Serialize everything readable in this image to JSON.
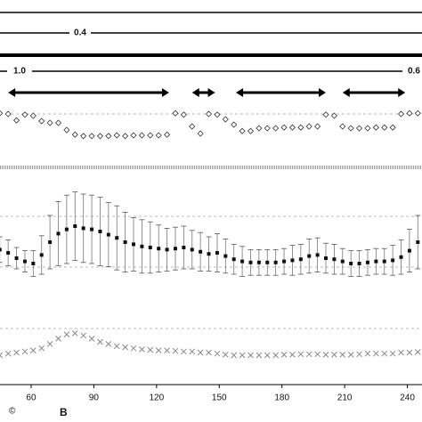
{
  "chart_data": {
    "type": "scatter",
    "x": [
      45,
      49,
      53,
      57,
      61,
      65,
      69,
      73,
      77,
      81,
      85,
      89,
      93,
      97,
      101,
      105,
      109,
      113,
      117,
      121,
      125,
      129,
      133,
      137,
      141,
      145,
      149,
      153,
      157,
      161,
      165,
      169,
      173,
      177,
      181,
      185,
      189,
      193,
      197,
      201,
      205,
      209,
      213,
      217,
      221,
      225,
      229,
      233,
      237,
      241,
      245
    ],
    "xlim": [
      45.1,
      247
    ],
    "xticks": [
      60,
      90,
      120,
      150,
      180,
      210,
      240
    ],
    "annotations": [
      "0.4",
      "1.0",
      "0.6"
    ],
    "intervals": [
      [
        49,
        126
      ],
      [
        137,
        148
      ],
      [
        158,
        201
      ],
      [
        209,
        239
      ]
    ],
    "corner_marks": [
      "©",
      "B"
    ],
    "series": [
      {
        "marker": "diamond",
        "color": "#333333",
        "ylim": [
          0,
          1
        ],
        "values": [
          0.82,
          0.8,
          0.62,
          0.78,
          0.75,
          0.6,
          0.55,
          0.55,
          0.35,
          0.22,
          0.18,
          0.18,
          0.18,
          0.18,
          0.2,
          0.18,
          0.2,
          0.2,
          0.2,
          0.2,
          0.22,
          0.82,
          0.78,
          0.45,
          0.25,
          0.8,
          0.78,
          0.65,
          0.5,
          0.32,
          0.32,
          0.4,
          0.4,
          0.4,
          0.42,
          0.42,
          0.42,
          0.45,
          0.45,
          0.78,
          0.75,
          0.45,
          0.4,
          0.4,
          0.4,
          0.42,
          0.42,
          0.42,
          0.8,
          0.82,
          0.82
        ]
      },
      {
        "marker": "errorbar",
        "color": "#111111",
        "ylim": [
          0,
          100
        ],
        "values": [
          33,
          30,
          25,
          22,
          20,
          28,
          40,
          48,
          52,
          55,
          53,
          52,
          50,
          47,
          44,
          40,
          38,
          36,
          35,
          34,
          33,
          34,
          35,
          33,
          31,
          29,
          30,
          27,
          24,
          22,
          21,
          21,
          21,
          21,
          22,
          23,
          24,
          27,
          28,
          25,
          24,
          22,
          20,
          20,
          21,
          22,
          22,
          23,
          26,
          32,
          40
        ],
        "errors": [
          12,
          12,
          10,
          10,
          12,
          18,
          25,
          30,
          32,
          32,
          32,
          32,
          32,
          30,
          30,
          28,
          25,
          25,
          24,
          22,
          20,
          20,
          20,
          18,
          18,
          16,
          18,
          16,
          14,
          14,
          12,
          12,
          12,
          12,
          12,
          14,
          14,
          16,
          16,
          14,
          14,
          12,
          12,
          12,
          12,
          12,
          12,
          14,
          16,
          20,
          25
        ]
      },
      {
        "marker": "cross",
        "color": "#888888",
        "ylim": [
          0,
          100
        ],
        "values": [
          35,
          38,
          40,
          42,
          44,
          48,
          56,
          66,
          74,
          76,
          72,
          66,
          60,
          56,
          52,
          50,
          48,
          46,
          45,
          44,
          44,
          43,
          42,
          42,
          40,
          40,
          38,
          36,
          35,
          35,
          35,
          35,
          35,
          35,
          36,
          36,
          37,
          37,
          37,
          36,
          36,
          36,
          36,
          37,
          38,
          38,
          38,
          38,
          40,
          40,
          41
        ]
      }
    ]
  }
}
